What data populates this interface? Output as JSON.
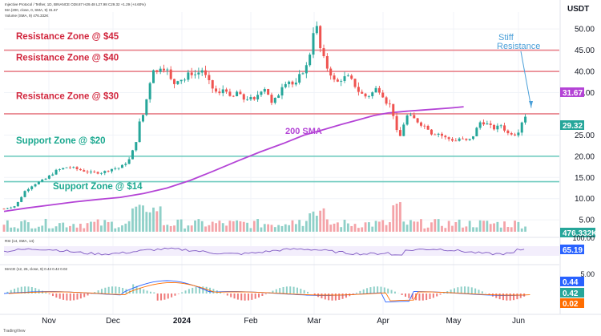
{
  "header": {
    "symbol_line": "Injective Protocol / Tether, 1D, BINANCE  O28.87 H29.48 L27.98 C29.32 +1.29 (+4.60%)",
    "ma_line": "MA (200, close, 0, SMA, 9)  31.67",
    "volume_line": "Volume (SMA, 9)  476.332K",
    "currency": "USDT",
    "watermark": "TradingView"
  },
  "chart_data": {
    "type": "candlestick",
    "title": "Injective Protocol / Tether",
    "price_axis": {
      "ticks": [
        5,
        10,
        15,
        20,
        25,
        30,
        35,
        40,
        45,
        50
      ],
      "ylim": [
        2,
        54
      ],
      "unit": "USDT"
    },
    "x_axis": {
      "ticks": [
        "Nov",
        "Dec",
        "2024",
        "Feb",
        "Mar",
        "Apr",
        "May",
        "Jun"
      ]
    },
    "last_price": "29.32",
    "sma": {
      "label": "200 SMA",
      "last": "31.67",
      "color": "#b444d6",
      "points": [
        [
          0,
          7
        ],
        [
          20,
          7.8
        ],
        [
          40,
          8.5
        ],
        [
          60,
          9.2
        ],
        [
          80,
          9.8
        ],
        [
          100,
          10.3
        ],
        [
          120,
          11.2
        ],
        [
          140,
          12.5
        ],
        [
          160,
          14.3
        ],
        [
          180,
          16.5
        ],
        [
          200,
          18.8
        ],
        [
          220,
          21.0
        ],
        [
          240,
          23.0
        ],
        [
          258,
          25.0
        ],
        [
          275,
          26.3
        ],
        [
          290,
          27.5
        ],
        [
          305,
          28.6
        ],
        [
          318,
          29.6
        ],
        [
          330,
          30.2
        ],
        [
          345,
          30.6
        ],
        [
          360,
          30.9
        ],
        [
          385,
          31.4
        ],
        [
          395,
          31.67
        ]
      ]
    },
    "zones": [
      {
        "label": "Resistance Zone @ $45",
        "value": 45,
        "kind": "resistance"
      },
      {
        "label": "Resistance Zone @ $40",
        "value": 40,
        "kind": "resistance"
      },
      {
        "label": "Resistance Zone @ $30",
        "value": 30,
        "kind": "resistance"
      },
      {
        "label": "Support Zone @ $20",
        "value": 20,
        "kind": "support"
      },
      {
        "label": "Support Zone @ $14",
        "value": 14,
        "kind": "support"
      }
    ],
    "annotation": {
      "text": [
        "Stiff",
        "Resistance"
      ]
    },
    "price_path": [
      [
        0,
        7.6
      ],
      [
        10,
        8.3
      ],
      [
        18,
        11.8
      ],
      [
        25,
        13.3
      ],
      [
        35,
        14.5
      ],
      [
        45,
        16.6
      ],
      [
        55,
        17.5
      ],
      [
        65,
        16.8
      ],
      [
        75,
        16.1
      ],
      [
        85,
        16.2
      ],
      [
        92,
        17.0
      ],
      [
        100,
        17.3
      ],
      [
        108,
        19.3
      ],
      [
        113,
        23.0
      ],
      [
        117,
        28.6
      ],
      [
        120,
        30.0
      ],
      [
        125,
        37.0
      ],
      [
        128,
        41.0
      ],
      [
        131,
        39.5
      ],
      [
        135,
        41.5
      ],
      [
        140,
        40.4
      ],
      [
        145,
        36.7
      ],
      [
        150,
        38.5
      ],
      [
        155,
        38.0
      ],
      [
        160,
        39.8
      ],
      [
        165,
        39.2
      ],
      [
        170,
        40.5
      ],
      [
        175,
        37.8
      ],
      [
        180,
        35.7
      ],
      [
        185,
        34.5
      ],
      [
        190,
        36.6
      ],
      [
        195,
        33.0
      ],
      [
        200,
        35.2
      ],
      [
        205,
        33.4
      ],
      [
        210,
        33.8
      ],
      [
        215,
        33.0
      ],
      [
        220,
        35.6
      ],
      [
        225,
        36.3
      ],
      [
        230,
        32.3
      ],
      [
        235,
        34.0
      ],
      [
        240,
        37.5
      ],
      [
        245,
        37.8
      ],
      [
        250,
        36.3
      ],
      [
        255,
        39.5
      ],
      [
        260,
        41.2
      ],
      [
        263,
        44.5
      ],
      [
        265,
        48.0
      ],
      [
        267,
        52.0
      ],
      [
        269,
        50.0
      ],
      [
        271,
        46.0
      ],
      [
        274,
        43.5
      ],
      [
        277,
        41.2
      ],
      [
        280,
        40.0
      ],
      [
        285,
        37.0
      ],
      [
        290,
        38.3
      ],
      [
        295,
        38.7
      ],
      [
        300,
        37.4
      ],
      [
        305,
        35.2
      ],
      [
        310,
        34.1
      ],
      [
        315,
        34.5
      ],
      [
        320,
        36.0
      ],
      [
        324,
        35.4
      ],
      [
        328,
        33.0
      ],
      [
        332,
        32.0
      ],
      [
        335,
        29.4
      ],
      [
        338,
        25.0
      ],
      [
        340,
        24.2
      ],
      [
        343,
        27.3
      ],
      [
        346,
        29.5
      ],
      [
        350,
        29.2
      ],
      [
        355,
        28.3
      ],
      [
        360,
        27.3
      ],
      [
        364,
        26.8
      ],
      [
        368,
        25.2
      ],
      [
        372,
        25.6
      ],
      [
        376,
        24.9
      ],
      [
        380,
        24.2
      ],
      [
        384,
        24.0
      ],
      [
        388,
        23.6
      ],
      [
        392,
        24.3
      ],
      [
        396,
        23.6
      ],
      [
        400,
        23.8
      ],
      [
        405,
        25.5
      ],
      [
        408,
        28.0
      ],
      [
        412,
        28.0
      ],
      [
        416,
        27.4
      ],
      [
        420,
        26.5
      ],
      [
        424,
        26.8
      ],
      [
        428,
        27.5
      ],
      [
        432,
        25.3
      ],
      [
        436,
        25.5
      ],
      [
        440,
        25.2
      ],
      [
        442,
        26.0
      ],
      [
        445,
        28.2
      ],
      [
        448,
        29.32
      ]
    ],
    "volume": {
      "last": "476.332K"
    },
    "rsi": {
      "label": "RSI (14, SMA, 14)",
      "value": "65.19",
      "range": [
        0,
        100
      ]
    },
    "macd": {
      "label": "MACD (12, 26, close, 9)",
      "values": [
        "0.44",
        "0.42",
        "0.02"
      ],
      "colors": [
        "#2962ff",
        "#26a69a",
        "#ff6d00"
      ],
      "ticks": [
        "5.00",
        "0.00"
      ]
    }
  }
}
